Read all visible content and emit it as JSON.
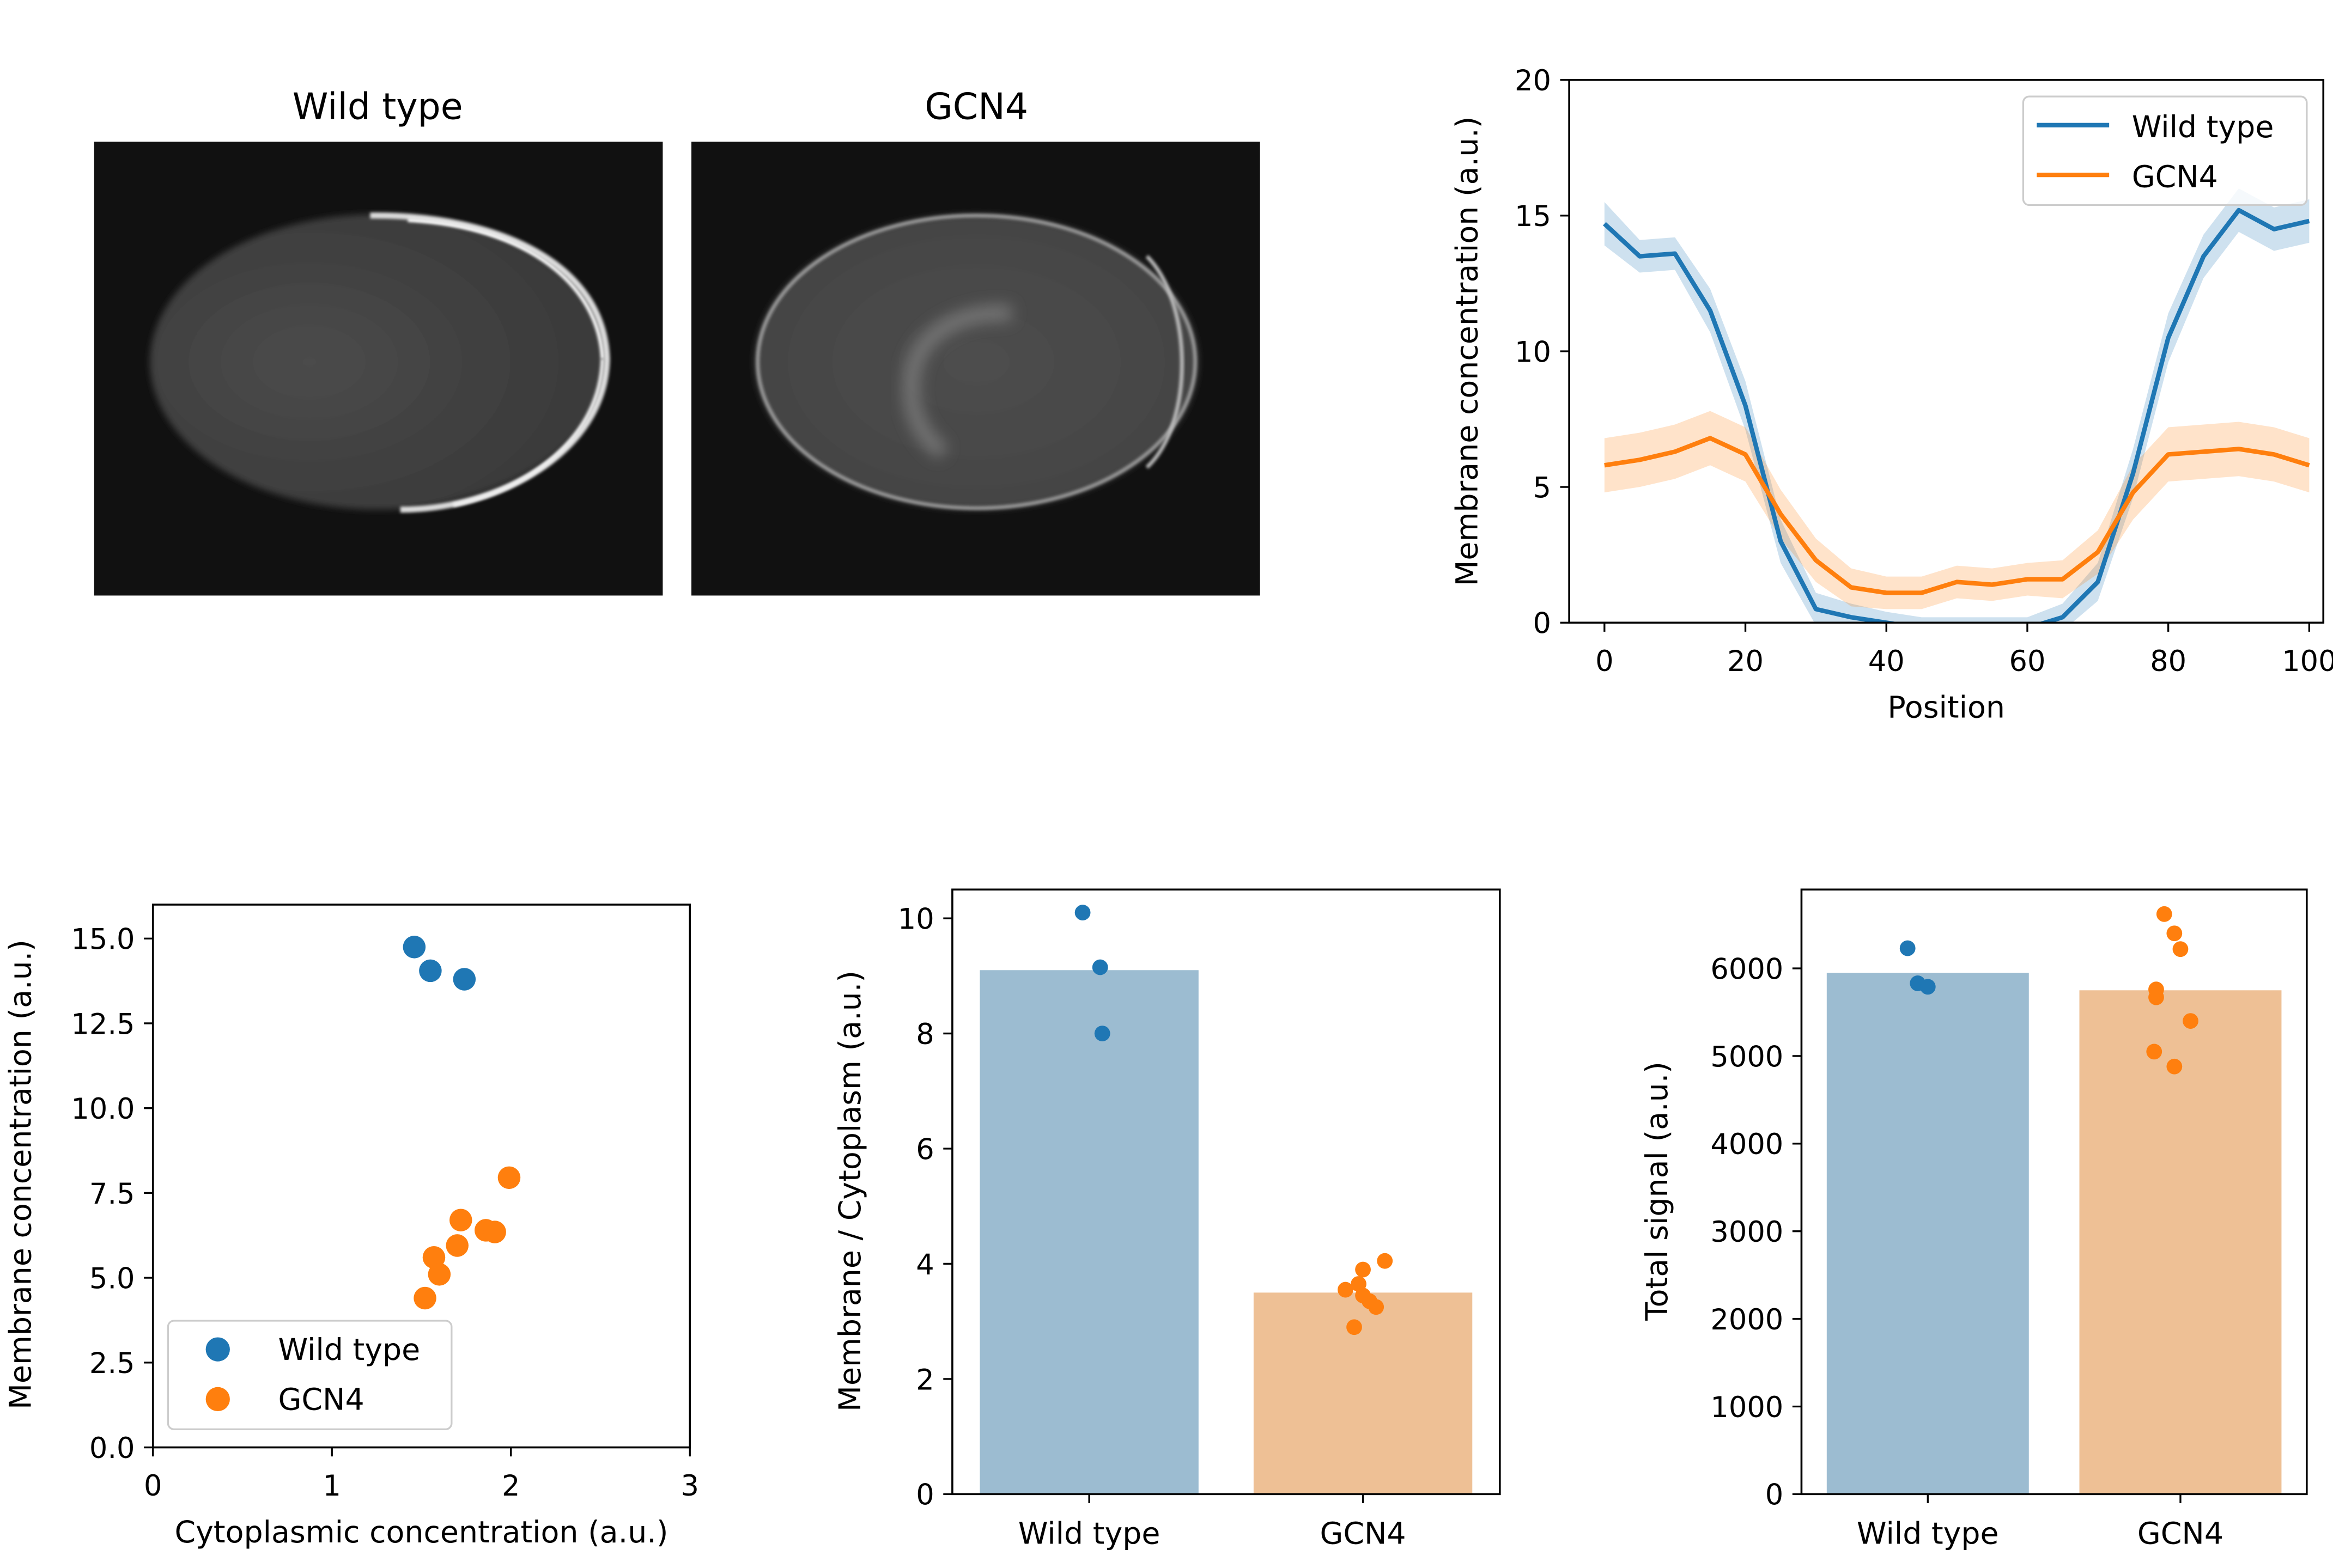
{
  "colors": {
    "wild_type": "#1f77b4",
    "gcn4": "#ff7f0e",
    "wt_bar": "#9cbcd1",
    "gcn4_bar": "#eec095"
  },
  "images": {
    "left_title": "Wild type",
    "right_title": "GCN4"
  },
  "chart_data": [
    {
      "type": "line",
      "xlabel": "Position",
      "ylabel": "Membrane concentration (a.u.)",
      "xlim": [
        -5,
        102
      ],
      "ylim": [
        0,
        20
      ],
      "xticks": [
        "0",
        "20",
        "40",
        "60",
        "80",
        "100"
      ],
      "yticks": [
        "0",
        "5",
        "10",
        "15",
        "20"
      ],
      "legend": "top-right",
      "x": [
        0,
        5,
        10,
        15,
        20,
        25,
        30,
        35,
        40,
        45,
        50,
        55,
        60,
        65,
        70,
        75,
        80,
        85,
        90,
        95,
        100
      ],
      "series": [
        {
          "name": "Wild type",
          "color": "#1f77b4",
          "values": [
            14.7,
            13.5,
            13.6,
            11.5,
            8.0,
            3.0,
            0.5,
            0.2,
            0,
            -0.2,
            -0.2,
            -0.2,
            -0.2,
            0.2,
            1.5,
            5.5,
            10.5,
            13.5,
            15.2,
            14.5,
            14.8
          ],
          "band": [
            0.8,
            0.6,
            0.6,
            0.8,
            0.9,
            0.8,
            0.6,
            0.5,
            0.4,
            0.4,
            0.4,
            0.4,
            0.4,
            0.5,
            0.7,
            0.9,
            0.9,
            0.8,
            0.8,
            0.8,
            0.8
          ]
        },
        {
          "name": "GCN4",
          "color": "#ff7f0e",
          "values": [
            5.8,
            6.0,
            6.3,
            6.8,
            6.2,
            4.0,
            2.3,
            1.3,
            1.1,
            1.1,
            1.5,
            1.4,
            1.6,
            1.6,
            2.6,
            4.8,
            6.2,
            6.3,
            6.4,
            6.2,
            5.8
          ],
          "band": [
            1.0,
            1.0,
            1.0,
            1.0,
            1.0,
            0.9,
            0.8,
            0.7,
            0.6,
            0.6,
            0.6,
            0.6,
            0.6,
            0.7,
            0.8,
            1.0,
            1.0,
            1.0,
            1.0,
            1.0,
            1.0
          ]
        }
      ]
    },
    {
      "type": "scatter",
      "xlabel": "Cytoplasmic concentration (a.u.)",
      "ylabel": "Membrane concentration (a.u.)",
      "xlim": [
        0,
        3
      ],
      "ylim": [
        0,
        16
      ],
      "xticks": [
        "0",
        "1",
        "2",
        "3"
      ],
      "yticks": [
        "0.0",
        "2.5",
        "5.0",
        "7.5",
        "10.0",
        "12.5",
        "15.0"
      ],
      "legend": "bottom-left",
      "series": [
        {
          "name": "Wild type",
          "color": "#1f77b4",
          "points": [
            [
              1.46,
              14.75
            ],
            [
              1.55,
              14.05
            ],
            [
              1.74,
              13.8
            ]
          ]
        },
        {
          "name": "GCN4",
          "color": "#ff7f0e",
          "points": [
            [
              1.52,
              4.4
            ],
            [
              1.57,
              5.6
            ],
            [
              1.6,
              5.1
            ],
            [
              1.7,
              5.95
            ],
            [
              1.72,
              6.7
            ],
            [
              1.86,
              6.4
            ],
            [
              1.91,
              6.35
            ],
            [
              1.99,
              7.95
            ]
          ]
        }
      ]
    },
    {
      "type": "bar",
      "ylabel": "Membrane / Cytoplasm (a.u.)",
      "ylim": [
        0,
        10.5
      ],
      "categories": [
        "Wild type",
        "GCN4"
      ],
      "yticks": [
        "0",
        "2",
        "4",
        "6",
        "8",
        "10"
      ],
      "values": [
        9.1,
        3.5
      ],
      "points": [
        [
          [
            -0.03,
            10.1
          ],
          [
            0.05,
            9.15
          ],
          [
            0.06,
            8.0
          ]
        ],
        [
          [
            -0.08,
            3.55
          ],
          [
            -0.02,
            3.65
          ],
          [
            -0.04,
            2.9
          ],
          [
            0.0,
            3.45
          ],
          [
            0.0,
            3.9
          ],
          [
            0.03,
            3.35
          ],
          [
            0.06,
            3.25
          ],
          [
            0.1,
            4.05
          ]
        ]
      ]
    },
    {
      "type": "bar",
      "ylabel": "Total signal (a.u.)",
      "ylim": [
        0,
        6900
      ],
      "categories": [
        "Wild type",
        "GCN4"
      ],
      "yticks": [
        "0",
        "1000",
        "2000",
        "3000",
        "4000",
        "5000",
        "6000"
      ],
      "values": [
        5950,
        5750
      ],
      "points": [
        [
          [
            -0.1,
            6230
          ],
          [
            -0.05,
            5830
          ],
          [
            0.0,
            5790
          ]
        ],
        [
          [
            -0.12,
            5670
          ],
          [
            -0.12,
            5760
          ],
          [
            -0.13,
            5050
          ],
          [
            -0.08,
            6620
          ],
          [
            -0.03,
            6400
          ],
          [
            -0.03,
            4880
          ],
          [
            0.0,
            6220
          ],
          [
            0.05,
            5400
          ]
        ]
      ]
    }
  ]
}
